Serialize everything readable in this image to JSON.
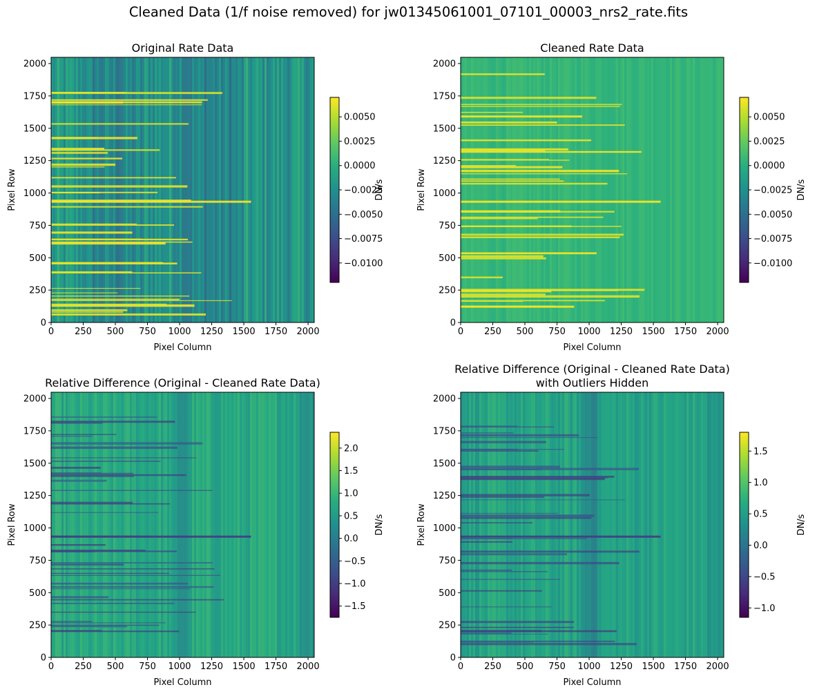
{
  "figure": {
    "title": "Cleaned Data (1/f noise removed) for jw01345061001_07101_00003_nrs2_rate.fits"
  },
  "colors": {
    "colormap": "viridis",
    "viridis_stops": [
      "#440154",
      "#472c7a",
      "#3b518b",
      "#2c718e",
      "#21908d",
      "#27ad81",
      "#5cc863",
      "#aadc32",
      "#fde725"
    ]
  },
  "chart_data": [
    {
      "type": "heatmap",
      "title": "Original Rate Data",
      "xlabel": "Pixel Column",
      "ylabel": "Pixel Row",
      "xlim": [
        0,
        2048
      ],
      "ylim": [
        0,
        2048
      ],
      "xticks": [
        0,
        250,
        500,
        750,
        1000,
        1250,
        1500,
        1750,
        2000
      ],
      "yticks": [
        0,
        250,
        500,
        750,
        1000,
        1250,
        1500,
        1750,
        2000
      ],
      "colorbar": {
        "label": "DN/s",
        "range": [
          -0.012,
          0.007
        ],
        "ticks": [
          -0.01,
          -0.0075,
          -0.005,
          -0.0025,
          0.0,
          0.0025,
          0.005
        ],
        "tick_labels": [
          "−0.0100",
          "−0.0075",
          "−0.0050",
          "−0.0025",
          "0.0000",
          "0.0025",
          "0.0050"
        ]
      },
      "background_level": 0.52
    },
    {
      "type": "heatmap",
      "title": "Cleaned Rate Data",
      "xlabel": "Pixel Column",
      "ylabel": "Pixel Row",
      "xlim": [
        0,
        2048
      ],
      "ylim": [
        0,
        2048
      ],
      "xticks": [
        0,
        250,
        500,
        750,
        1000,
        1250,
        1500,
        1750,
        2000
      ],
      "yticks": [
        0,
        250,
        500,
        750,
        1000,
        1250,
        1500,
        1750,
        2000
      ],
      "colorbar": {
        "label": "DN/s",
        "range": [
          -0.012,
          0.007
        ],
        "ticks": [
          -0.01,
          -0.0075,
          -0.005,
          -0.0025,
          0.0,
          0.0025,
          0.005
        ],
        "tick_labels": [
          "−0.0100",
          "−0.0075",
          "−0.0050",
          "−0.0025",
          "0.0000",
          "0.0025",
          "0.0050"
        ]
      },
      "background_level": 0.66
    },
    {
      "type": "heatmap",
      "title": "Relative Difference (Original - Cleaned Rate Data)",
      "xlabel": "Pixel Column",
      "ylabel": "Pixel Row",
      "xlim": [
        0,
        2048
      ],
      "ylim": [
        0,
        2048
      ],
      "xticks": [
        0,
        250,
        500,
        750,
        1000,
        1250,
        1500,
        1750,
        2000
      ],
      "yticks": [
        0,
        250,
        500,
        750,
        1000,
        1250,
        1500,
        1750,
        2000
      ],
      "colorbar": {
        "label": "DN/s",
        "range": [
          -1.75,
          2.35
        ],
        "ticks": [
          -1.5,
          -1.0,
          -0.5,
          0.0,
          0.5,
          1.0,
          1.5,
          2.0
        ],
        "tick_labels": [
          "−1.5",
          "−1.0",
          "−0.5",
          "0.0",
          "0.5",
          "1.0",
          "1.5",
          "2.0"
        ]
      },
      "background_level": 0.6
    },
    {
      "type": "heatmap",
      "title": "Relative Difference (Original - Cleaned Rate Data)",
      "title_line2": "with Outliers Hidden",
      "xlabel": "Pixel Column",
      "ylabel": "Pixel Row",
      "xlim": [
        0,
        2048
      ],
      "ylim": [
        0,
        2048
      ],
      "xticks": [
        0,
        250,
        500,
        750,
        1000,
        1250,
        1500,
        1750,
        2000
      ],
      "yticks": [
        0,
        250,
        500,
        750,
        1000,
        1250,
        1500,
        1750,
        2000
      ],
      "colorbar": {
        "label": "DN/s",
        "range": [
          -1.15,
          1.8
        ],
        "ticks": [
          -1.0,
          -0.5,
          0.0,
          0.5,
          1.0,
          1.5
        ],
        "tick_labels": [
          "−1.0",
          "−0.5",
          "0.0",
          "0.5",
          "1.0",
          "1.5"
        ]
      },
      "background_level": 0.58
    }
  ]
}
